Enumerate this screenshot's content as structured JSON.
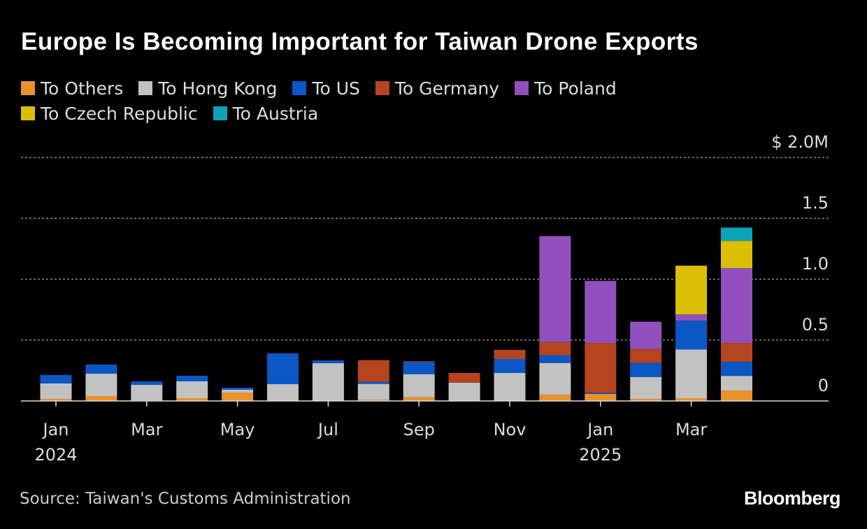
{
  "title": "Europe Is Becoming Important for Taiwan Drone Exports",
  "source": "Source: Taiwan's Customs Administration",
  "logo": "Bloomberg",
  "chart_data": {
    "type": "bar",
    "stacked": true,
    "title": "Europe Is Becoming Important for Taiwan Drone Exports",
    "ylabel": "$M",
    "ylim": [
      0,
      2.0
    ],
    "yticks": [
      {
        "v": 0,
        "label": "0"
      },
      {
        "v": 0.5,
        "label": "0.5"
      },
      {
        "v": 1.0,
        "label": "1.0"
      },
      {
        "v": 1.5,
        "label": "1.5"
      },
      {
        "v": 2.0,
        "label": "$ 2.0M"
      }
    ],
    "categories": [
      "Jan 2024",
      "Feb 2024",
      "Mar 2024",
      "Apr 2024",
      "May 2024",
      "Jun 2024",
      "Jul 2024",
      "Aug 2024",
      "Sep 2024",
      "Oct 2024",
      "Nov 2024",
      "Dec 2024",
      "Jan 2025",
      "Feb 2025",
      "Mar 2025",
      "Apr 2025"
    ],
    "xticks": [
      {
        "i": 0,
        "label": "Jan",
        "sub": "2024"
      },
      {
        "i": 2,
        "label": "Mar"
      },
      {
        "i": 4,
        "label": "May"
      },
      {
        "i": 6,
        "label": "Jul"
      },
      {
        "i": 8,
        "label": "Sep"
      },
      {
        "i": 10,
        "label": "Nov"
      },
      {
        "i": 12,
        "label": "Jan",
        "sub": "2025"
      },
      {
        "i": 14,
        "label": "Mar"
      }
    ],
    "series": [
      {
        "name": "To Others",
        "color": "#e8922b",
        "values": [
          0.017,
          0.04,
          0.005,
          0.023,
          0.069,
          0,
          0,
          0.01,
          0.03,
          0,
          0,
          0.052,
          0.058,
          0.017,
          0.023,
          0.086
        ]
      },
      {
        "name": "To Hong Kong",
        "color": "#c2c2c2",
        "values": [
          0.127,
          0.184,
          0.127,
          0.138,
          0.023,
          0.138,
          0.31,
          0.13,
          0.19,
          0.15,
          0.23,
          0.26,
          0,
          0.18,
          0.4,
          0.12
        ]
      },
      {
        "name": "To US",
        "color": "#0b57c6",
        "values": [
          0.069,
          0.075,
          0.029,
          0.046,
          0.017,
          0.253,
          0.023,
          0.017,
          0.1,
          0,
          0.115,
          0.063,
          0.01,
          0.115,
          0.236,
          0.115
        ]
      },
      {
        "name": "To Germany",
        "color": "#b5441f",
        "values": [
          0,
          0,
          0,
          0,
          0,
          0,
          0,
          0.178,
          0.006,
          0.08,
          0.075,
          0.109,
          0.408,
          0.115,
          0,
          0.155
        ]
      },
      {
        "name": "To Poland",
        "color": "#9150bd",
        "values": [
          0,
          0,
          0,
          0,
          0,
          0,
          0,
          0,
          0,
          0,
          0,
          0.87,
          0.51,
          0.224,
          0.052,
          0.615
        ]
      },
      {
        "name": "To Czech Republic",
        "color": "#dbbf05",
        "values": [
          0,
          0,
          0,
          0,
          0,
          0,
          0,
          0,
          0,
          0,
          0,
          0,
          0,
          0,
          0.4,
          0.224
        ]
      },
      {
        "name": "To Austria",
        "color": "#0aa3b8",
        "values": [
          0,
          0,
          0,
          0,
          0,
          0,
          0,
          0,
          0,
          0,
          0,
          0,
          0,
          0,
          0,
          0.109
        ]
      }
    ]
  }
}
